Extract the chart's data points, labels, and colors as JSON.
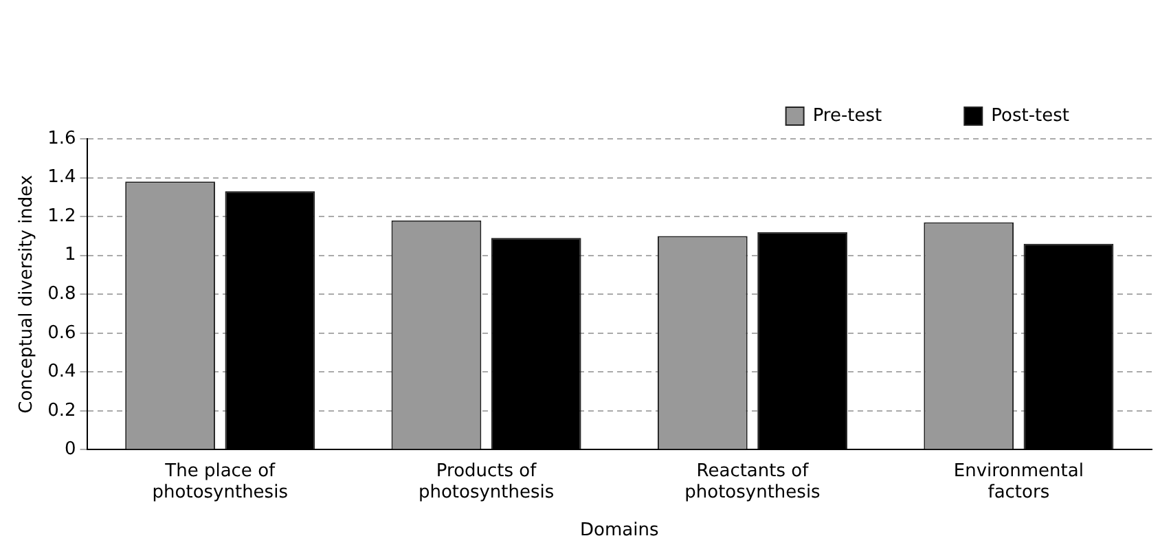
{
  "chart_data": {
    "type": "bar",
    "xlabel": "Domains",
    "ylabel": "Conceptual diversity index",
    "categories": [
      "The place of\nphotosynthesis",
      "Products of\nphotosynthesis",
      "Reactants of\nphotosynthesis",
      "Environmental\nfactors"
    ],
    "series": [
      {
        "name": "Pre-test",
        "color": "#999999",
        "values": [
          1.38,
          1.18,
          1.1,
          1.17
        ]
      },
      {
        "name": "Post-test",
        "color": "#000000",
        "values": [
          1.33,
          1.09,
          1.12,
          1.06
        ]
      }
    ],
    "ylim": [
      0,
      1.6
    ],
    "yticks": [
      0,
      0.2,
      0.4,
      0.6,
      0.8,
      1,
      1.2,
      1.4,
      1.6
    ],
    "grid": "y",
    "legend": "top right"
  }
}
